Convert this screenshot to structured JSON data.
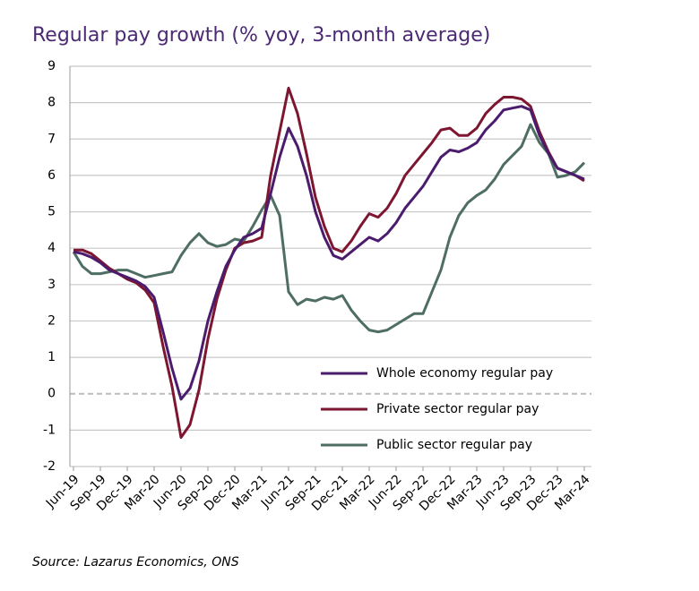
{
  "chart_data": {
    "type": "line",
    "title": "Regular pay growth (% yoy, 3-month average)",
    "source": "Source: Lazarus Economics, ONS",
    "categories": [
      "Jun-19",
      null,
      null,
      "Sep-19",
      null,
      null,
      "Dec-19",
      null,
      null,
      "Mar-20",
      null,
      null,
      "Jun-20",
      null,
      null,
      "Sep-20",
      null,
      null,
      "Dec-20",
      null,
      null,
      "Mar-21",
      null,
      null,
      "Jun-21",
      null,
      null,
      "Sep-21",
      null,
      null,
      "Dec-21",
      null,
      null,
      "Mar-22",
      null,
      null,
      "Jun-22",
      null,
      null,
      "Sep-22",
      null,
      null,
      "Dec-22",
      null,
      null,
      "Mar-23",
      null,
      null,
      "Jun-23",
      null,
      null,
      "Sep-23",
      null,
      null,
      "Dec-23",
      null,
      null,
      "Mar-24"
    ],
    "series": [
      {
        "name": "Whole economy regular pay",
        "color": "#4b1c6e",
        "values": [
          3.9,
          3.85,
          3.75,
          3.6,
          3.4,
          3.3,
          3.2,
          3.1,
          2.95,
          2.65,
          1.7,
          0.7,
          -0.15,
          0.15,
          0.9,
          2.0,
          2.8,
          3.5,
          3.95,
          4.3,
          4.4,
          4.55,
          5.5,
          6.5,
          7.3,
          6.8,
          6.0,
          5.0,
          4.3,
          3.8,
          3.7,
          3.9,
          4.1,
          4.3,
          4.2,
          4.4,
          4.7,
          5.1,
          5.4,
          5.7,
          6.1,
          6.5,
          6.7,
          6.65,
          6.75,
          6.9,
          7.25,
          7.5,
          7.8,
          7.85,
          7.9,
          7.8,
          7.1,
          6.6,
          6.2,
          6.1,
          6.0,
          5.9
        ]
      },
      {
        "name": "Private sector regular pay",
        "color": "#7d1631",
        "values": [
          3.95,
          3.95,
          3.85,
          3.65,
          3.45,
          3.3,
          3.15,
          3.05,
          2.85,
          2.5,
          1.3,
          0.2,
          -1.2,
          -0.85,
          0.1,
          1.5,
          2.6,
          3.4,
          4.0,
          4.15,
          4.2,
          4.3,
          6.0,
          7.2,
          8.4,
          7.7,
          6.6,
          5.4,
          4.6,
          4.0,
          3.9,
          4.2,
          4.6,
          4.95,
          4.85,
          5.1,
          5.5,
          6.0,
          6.3,
          6.6,
          6.9,
          7.25,
          7.3,
          7.1,
          7.1,
          7.3,
          7.7,
          7.95,
          8.15,
          8.15,
          8.1,
          7.9,
          7.2,
          6.65,
          6.2,
          6.1,
          6.0,
          5.85
        ]
      },
      {
        "name": "Public sector regular pay",
        "color": "#4f6e63",
        "values": [
          3.9,
          3.5,
          3.3,
          3.3,
          3.35,
          3.4,
          3.4,
          3.3,
          3.2,
          3.25,
          3.3,
          3.35,
          3.8,
          4.15,
          4.4,
          4.15,
          4.05,
          4.1,
          4.25,
          4.2,
          4.6,
          5.05,
          5.45,
          4.9,
          2.8,
          2.45,
          2.6,
          2.55,
          2.65,
          2.6,
          2.7,
          2.3,
          2.0,
          1.75,
          1.7,
          1.75,
          1.9,
          2.05,
          2.2,
          2.2,
          2.8,
          3.4,
          4.3,
          4.9,
          5.25,
          5.45,
          5.6,
          5.9,
          6.3,
          6.55,
          6.8,
          7.4,
          6.9,
          6.6,
          5.95,
          6.0,
          6.1,
          6.35
        ]
      }
    ],
    "ylim": [
      -2,
      9
    ],
    "yticks": [
      9,
      8,
      7,
      6,
      5,
      4,
      3,
      2,
      1,
      0,
      -1,
      -2
    ],
    "grid": true
  }
}
